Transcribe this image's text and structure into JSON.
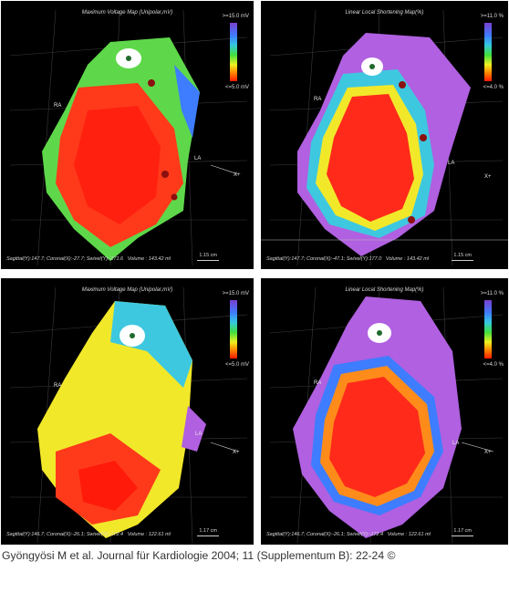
{
  "panels": [
    {
      "title": "Maximum Voltage Map (Unipolar,mV)",
      "colorbar_max": ">=15.0 mV",
      "colorbar_min": "<=5.0 mV",
      "ra": "RA",
      "la": "LA",
      "axis": "X+",
      "status": "Sagittal(Y):147.7; Coronal(X):-27.7; Swivel(Y):-171.6",
      "volume": "Volume : 143.42 ml",
      "scale": "1.15 cm"
    },
    {
      "title": "Linear Local Shortening Map(%)",
      "colorbar_max": ">=11.0 %",
      "colorbar_min": "<=4.0 %",
      "ra": "RA",
      "la": "LA",
      "axis": "X+",
      "status": "Sagittal(Y):147.7; Coronal(X):-47.1; Swivel(Y):177.0",
      "volume": "Volume : 143.42 ml",
      "scale": "1.15 cm"
    },
    {
      "title": "Maximum Voltage Map (Unipolar,mV)",
      "colorbar_max": ">=15.0 mV",
      "colorbar_min": "<=5.0 mV",
      "ra": "RA",
      "la": "LA",
      "axis": "X+",
      "status": "Sagittal(Y):146.7; Coronal(X):-26.1; Swivel(Y):-172.4",
      "volume": "Volume : 122.61 ml",
      "scale": "1.17 cm"
    },
    {
      "title": "Linear Local Shortening Map(%)",
      "colorbar_max": ">=11.0 %",
      "colorbar_min": "<=4.0 %",
      "ra": "RA",
      "la": "LA",
      "axis": "X+",
      "status": "Sagittal(Y):146.7; Coronal(X):-26.1; Swivel(Y):-172.4",
      "volume": "Volume : 122.61 ml",
      "scale": "1.17 cm"
    }
  ],
  "citation": "Gyöngyösi M et al. Journal für Kardiologie 2004; 11 (Supplementum B): 22-24 ©",
  "colors": {
    "background": "#000000",
    "red": "#ff2a1a",
    "orange": "#ff8c1a",
    "yellow": "#f2e82a",
    "green": "#3fd84a",
    "cyan": "#3ec8e0",
    "blue": "#3a6cf0",
    "purple": "#b060e0"
  }
}
